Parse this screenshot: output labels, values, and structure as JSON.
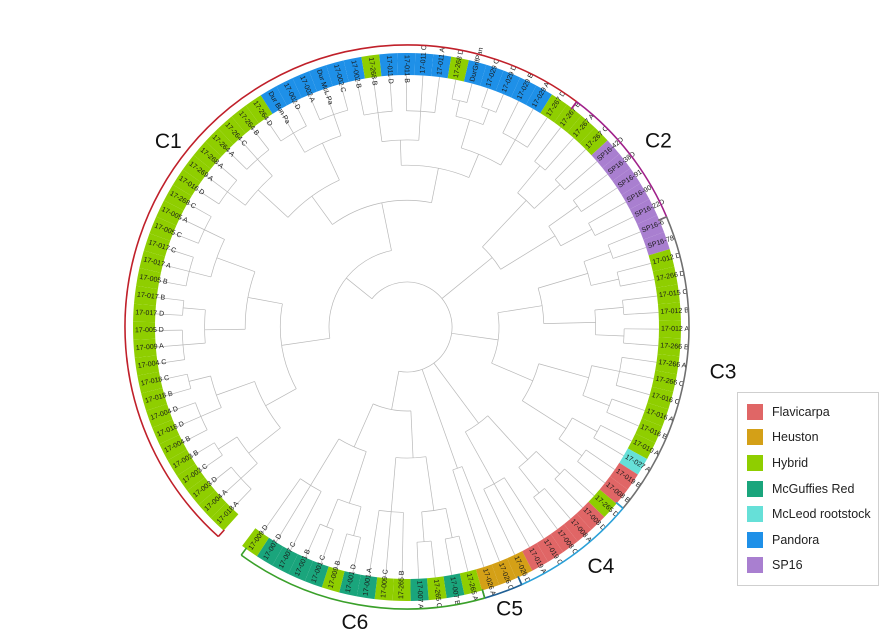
{
  "groups": {
    "Flavicarpa": "#e06666",
    "Heuston": "#d4a017",
    "Hybrid": "#8fce00",
    "McGuffies Red": "#1aa57c",
    "McLeod rootstock": "#66e0d8",
    "Pandora": "#1e90e8",
    "SP16": "#a97fd0"
  },
  "legend": [
    {
      "label": "Flavicarpa",
      "color": "#e06666"
    },
    {
      "label": "Heuston",
      "color": "#d4a017"
    },
    {
      "label": "Hybrid",
      "color": "#8fce00"
    },
    {
      "label": "McGuffies Red",
      "color": "#1aa57c"
    },
    {
      "label": "McLeod rootstock",
      "color": "#66e0d8"
    },
    {
      "label": "Pandora",
      "color": "#1e90e8"
    },
    {
      "label": "SP16",
      "color": "#a97fd0"
    }
  ],
  "clades": [
    {
      "label": "C1",
      "color": "#c0202a",
      "start": 132,
      "end": 307
    },
    {
      "label": "C2",
      "color": "#a0208a",
      "start": 307,
      "end": 337
    },
    {
      "label": "C3",
      "color": "#707070",
      "start": 337,
      "end": 400
    },
    {
      "label": "C4",
      "color": "#2aa0d8",
      "start": 400,
      "end": 426
    },
    {
      "label": "C5",
      "color": "#1f5f94",
      "start": 426,
      "end": 434
    },
    {
      "label": "C6",
      "color": "#3aa02a",
      "start": 434,
      "end": 486
    }
  ],
  "leaves": [
    {
      "label": "17-018 A",
      "group": "Hybrid"
    },
    {
      "label": "17-004 A",
      "group": "Hybrid"
    },
    {
      "label": "17-003 D",
      "group": "Hybrid"
    },
    {
      "label": "17-003 C",
      "group": "Hybrid"
    },
    {
      "label": "17-003 B",
      "group": "Hybrid"
    },
    {
      "label": "17-004 B",
      "group": "Hybrid"
    },
    {
      "label": "17-018 D",
      "group": "Hybrid"
    },
    {
      "label": "17-004 D",
      "group": "Hybrid"
    },
    {
      "label": "17-018 B",
      "group": "Hybrid"
    },
    {
      "label": "17-018 C",
      "group": "Hybrid"
    },
    {
      "label": "17-004 C",
      "group": "Hybrid"
    },
    {
      "label": "17-009 A",
      "group": "Hybrid"
    },
    {
      "label": "17-005 D",
      "group": "Hybrid"
    },
    {
      "label": "17-017 D",
      "group": "Hybrid"
    },
    {
      "label": "17-017 B",
      "group": "Hybrid"
    },
    {
      "label": "17-005 B",
      "group": "Hybrid"
    },
    {
      "label": "17-017 A",
      "group": "Hybrid"
    },
    {
      "label": "17-017 C",
      "group": "Hybrid"
    },
    {
      "label": "17-005 C",
      "group": "Hybrid"
    },
    {
      "label": "17-005 A",
      "group": "Hybrid"
    },
    {
      "label": "17-268 C",
      "group": "Hybrid"
    },
    {
      "label": "17-016 D",
      "group": "Hybrid"
    },
    {
      "label": "17-269 A",
      "group": "Hybrid"
    },
    {
      "label": "17-268 A",
      "group": "Hybrid"
    },
    {
      "label": "17-264 A",
      "group": "Hybrid"
    },
    {
      "label": "17-264 C",
      "group": "Hybrid"
    },
    {
      "label": "17-264 B",
      "group": "Hybrid"
    },
    {
      "label": "17-264 D",
      "group": "Hybrid"
    },
    {
      "label": "Dur Bun Pa",
      "group": "Pandora"
    },
    {
      "label": "17-002 D",
      "group": "Pandora"
    },
    {
      "label": "17-002 A",
      "group": "Pandora"
    },
    {
      "label": "Dur McL Pa",
      "group": "Pandora"
    },
    {
      "label": "17-002 C",
      "group": "Pandora"
    },
    {
      "label": "17-002 B",
      "group": "Pandora"
    },
    {
      "label": "17-268 B",
      "group": "Hybrid"
    },
    {
      "label": "17-011 D",
      "group": "Pandora"
    },
    {
      "label": "17-011 B",
      "group": "Pandora"
    },
    {
      "label": "17-011 C",
      "group": "Pandora"
    },
    {
      "label": "17-011 A",
      "group": "Pandora"
    },
    {
      "label": "17-268 D",
      "group": "Hybrid"
    },
    {
      "label": "DurGrifPan",
      "group": "Pandora"
    },
    {
      "label": "17-029 C",
      "group": "Pandora"
    },
    {
      "label": "17-029 D",
      "group": "Pandora"
    },
    {
      "label": "17-029 B",
      "group": "Pandora"
    },
    {
      "label": "17-029 A",
      "group": "Pandora"
    },
    {
      "label": "17-267 D",
      "group": "Hybrid"
    },
    {
      "label": "17-267 B",
      "group": "Hybrid"
    },
    {
      "label": "17-267 A",
      "group": "Hybrid"
    },
    {
      "label": "17-267 C",
      "group": "Hybrid"
    },
    {
      "label": "SP16-42D",
      "group": "SP16"
    },
    {
      "label": "SP16-38D",
      "group": "SP16"
    },
    {
      "label": "SP16-91",
      "group": "SP16"
    },
    {
      "label": "SP16-90",
      "group": "SP16"
    },
    {
      "label": "SP16-22D",
      "group": "SP16"
    },
    {
      "label": "SP16-6",
      "group": "SP16"
    },
    {
      "label": "SP16-78",
      "group": "SP16"
    },
    {
      "label": "17-012 D",
      "group": "Hybrid"
    },
    {
      "label": "17-266 D",
      "group": "Hybrid"
    },
    {
      "label": "17-015 C",
      "group": "Hybrid"
    },
    {
      "label": "17-012 B",
      "group": "Hybrid"
    },
    {
      "label": "17-012 A",
      "group": "Hybrid"
    },
    {
      "label": "17-266 B",
      "group": "Hybrid"
    },
    {
      "label": "17-266 A",
      "group": "Hybrid"
    },
    {
      "label": "17-266 C",
      "group": "Hybrid"
    },
    {
      "label": "17-016 C",
      "group": "Hybrid"
    },
    {
      "label": "17-016 A",
      "group": "Hybrid"
    },
    {
      "label": "17-016 B",
      "group": "Hybrid"
    },
    {
      "label": "17-010 A",
      "group": "Hybrid"
    },
    {
      "label": "17-027 A",
      "group": "McLeod rootstock"
    },
    {
      "label": "17-019 B",
      "group": "Flavicarpa"
    },
    {
      "label": "17-008 B",
      "group": "Flavicarpa"
    },
    {
      "label": "17-265 D",
      "group": "Hybrid"
    },
    {
      "label": "17-008 D",
      "group": "Flavicarpa"
    },
    {
      "label": "17-008 A",
      "group": "Flavicarpa"
    },
    {
      "label": "17-008 C",
      "group": "Flavicarpa"
    },
    {
      "label": "17-019 C",
      "group": "Flavicarpa"
    },
    {
      "label": "17-019 A",
      "group": "Flavicarpa"
    },
    {
      "label": "17-026 D",
      "group": "Heuston"
    },
    {
      "label": "17-026 C",
      "group": "Heuston"
    },
    {
      "label": "17-026 A",
      "group": "Heuston"
    },
    {
      "label": "17-265 A",
      "group": "Hybrid"
    },
    {
      "label": "17-007 B",
      "group": "McGuffies Red"
    },
    {
      "label": "17-265 C",
      "group": "Hybrid"
    },
    {
      "label": "17-007 A",
      "group": "McGuffies Red"
    },
    {
      "label": "17-265 B",
      "group": "Hybrid"
    },
    {
      "label": "17-009 C",
      "group": "Hybrid"
    },
    {
      "label": "17-001 A",
      "group": "McGuffies Red"
    },
    {
      "label": "17-001 D",
      "group": "McGuffies Red"
    },
    {
      "label": "17-009 B",
      "group": "Hybrid"
    },
    {
      "label": "17-001 C",
      "group": "McGuffies Red"
    },
    {
      "label": "17-001 B",
      "group": "McGuffies Red"
    },
    {
      "label": "17-007 C",
      "group": "McGuffies Red"
    },
    {
      "label": "17-007 D",
      "group": "McGuffies Red"
    },
    {
      "label": "17-009 D",
      "group": "Hybrid"
    }
  ]
}
